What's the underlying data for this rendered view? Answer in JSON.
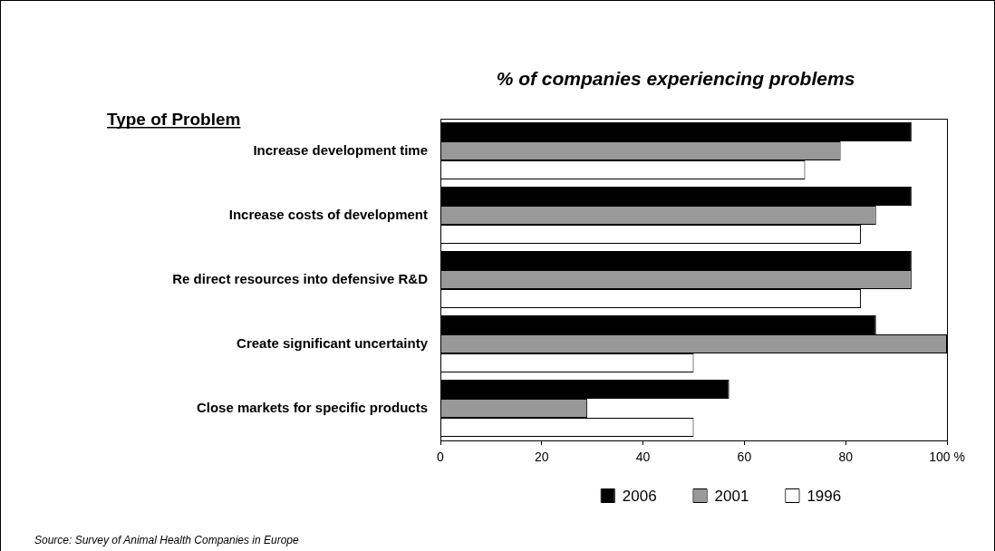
{
  "chart_data": {
    "type": "bar",
    "orientation": "horizontal",
    "title": "% of companies experiencing problems",
    "ylabel": "Type of Problem",
    "categories": [
      "Increase development time",
      "Increase costs of development",
      "Re direct resources into defensive R&D",
      "Create significant uncertainty",
      "Close markets for specific products"
    ],
    "series": [
      {
        "name": "2006",
        "color": "#000000",
        "values": [
          93,
          93,
          93,
          86,
          57
        ]
      },
      {
        "name": "2001",
        "color": "#999999",
        "values": [
          79,
          86,
          93,
          100,
          29
        ]
      },
      {
        "name": "1996",
        "color": "#ffffff",
        "values": [
          72,
          83,
          83,
          50,
          50
        ]
      }
    ],
    "xlim": [
      0,
      100
    ],
    "xticks": [
      0,
      20,
      40,
      60,
      80,
      {
        "value": 100,
        "label": "100 %"
      }
    ],
    "legend": "bottom",
    "annotations": [
      "Source: Survey of Animal Health Companies in Europe"
    ]
  }
}
